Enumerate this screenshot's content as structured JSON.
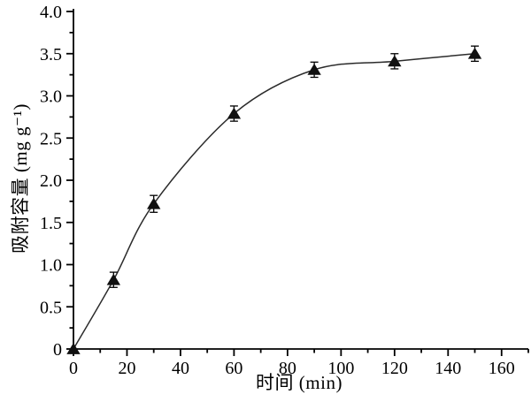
{
  "figure": {
    "background": "#ffffff",
    "axis_color": "#000000",
    "curve_color": "#2b2b2b",
    "marker_color": "#111111"
  },
  "chart_data": {
    "type": "line",
    "title": "",
    "xlabel": "时间 (min)",
    "ylabel": "吸附容量 (mg g⁻¹)",
    "x": [
      0,
      15,
      30,
      60,
      90,
      120,
      150
    ],
    "series": [
      {
        "name": "adsorption-capacity",
        "values": [
          0,
          0.82,
          1.72,
          2.79,
          3.31,
          3.41,
          3.5
        ],
        "errors": [
          0,
          0.09,
          0.1,
          0.09,
          0.09,
          0.09,
          0.09
        ],
        "marker": "filled-triangle-up",
        "line_style": "smooth-solid"
      }
    ],
    "xlim": [
      0,
      170
    ],
    "ylim": [
      0,
      4.0
    ],
    "x_major_ticks": [
      0,
      20,
      40,
      60,
      80,
      100,
      120,
      140,
      160
    ],
    "x_major_labels": [
      "0",
      "20",
      "40",
      "60",
      "80",
      "100",
      "120",
      "140",
      "160"
    ],
    "x_minor_ticks": [
      10,
      30,
      50,
      70,
      90,
      110,
      130,
      150,
      170
    ],
    "y_major_ticks": [
      0,
      0.5,
      1.0,
      1.5,
      2.0,
      2.5,
      3.0,
      3.5,
      4.0
    ],
    "y_major_labels": [
      "0",
      "0.5",
      "1.0",
      "1.5",
      "2.0",
      "2.5",
      "3.0",
      "3.5",
      "4.0"
    ],
    "y_minor_ticks": [
      0.25,
      0.75,
      1.25,
      1.75,
      2.25,
      2.75,
      3.25,
      3.75
    ],
    "grid": false,
    "legend": "none",
    "tick_direction": "out",
    "error_bars": true
  }
}
